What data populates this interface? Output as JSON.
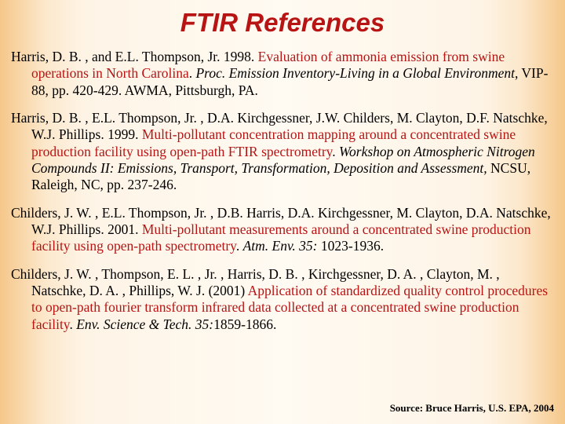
{
  "title": "FTIR References",
  "title_color": "#b81414",
  "title_font_family": "Arial",
  "title_font_style": "italic",
  "title_font_weight": "bold",
  "title_font_size_pt": 25,
  "body_font_family": "Times New Roman",
  "body_font_size_pt": 13,
  "highlight_color": "#b81414",
  "background_gradient": [
    "#f5c78a",
    "#fce8cc",
    "#fef4e6",
    "#fffaf2",
    "#fef4e6",
    "#fce8cc",
    "#f5c78a"
  ],
  "references": [
    {
      "plain1": "Harris, D. B. , and E.L. Thompson, Jr. 1998. ",
      "hl1": "Evaluation of ammonia emission from swine operations in North Carolina",
      "plain2": ". ",
      "it1": "Proc. Emission Inventory-Living in a Global Environment",
      "plain3": ", VIP-88, pp. 420-429. AWMA, Pittsburgh, PA."
    },
    {
      "plain1": "Harris, D. B. , E.L. Thompson, Jr. , D.A. Kirchgessner, J.W. Childers, M. Clayton, D.F. Natschke, W.J. Phillips. 1999. ",
      "hl1": "Multi-pollutant concentration mapping around a concentrated swine production facility using open-path FTIR spectrometry",
      "plain2": ". ",
      "it1": "Workshop on Atmospheric Nitrogen Compounds II: Emissions, Transport, Transformation, Deposition and Assessment,",
      "plain3": " NCSU, Raleigh, NC, pp. 237-246."
    },
    {
      "plain1": "Childers, J. W. , E.L. Thompson, Jr. , D.B. Harris, D.A. Kirchgessner, M. Clayton, D.A. Natschke, W.J. Phillips. 2001. ",
      "hl1": "Multi-pollutant measurements around a concentrated swine production facility using open-path spectrometry",
      "plain2": ". ",
      "it1": "Atm. Env. 35:",
      "plain3": " 1023-1936."
    },
    {
      "plain1": "Childers, J. W. , Thompson, E. L. , Jr. , Harris, D. B. , Kirchgessner, D. A. , Clayton, M. , Natschke, D. A. , Phillips, W. J. (2001) ",
      "hl1": "Application of standardized quality control procedures to open-path fourier transform infrared data collected at a concentrated swine production facility",
      "plain2": ". ",
      "it1": "Env. Science & Tech. 35:",
      "plain3": "1859-1866."
    }
  ],
  "source_line": "Source: Bruce Harris, U.S. EPA, 2004",
  "source_font_weight": "bold",
  "source_font_size_pt": 10
}
